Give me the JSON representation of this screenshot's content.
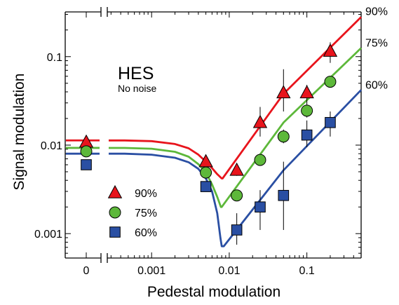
{
  "chart_data": {
    "type": "scatter",
    "title": "HES",
    "subtitle": "No noise",
    "xlabel": "Pedestal modulation",
    "ylabel": "Signal modulation",
    "x_scale": "log",
    "y_scale": "log",
    "xlim": [
      0.00028,
      0.5
    ],
    "ylim": [
      0.00053,
      0.32
    ],
    "x_ticks": [
      {
        "value": 0.001,
        "label": "0.001"
      },
      {
        "value": 0.01,
        "label": "0.01"
      },
      {
        "value": 0.1,
        "label": "0.1"
      }
    ],
    "x_zero_tick": "0",
    "y_ticks": [
      {
        "value": 0.001,
        "label": "0.001"
      },
      {
        "value": 0.01,
        "label": "0.01"
      },
      {
        "value": 0.1,
        "label": "0.1"
      }
    ],
    "right_labels": [
      "90%",
      "75%",
      "60%"
    ],
    "legend": [
      "90%",
      "75%",
      "60%"
    ],
    "legend_position": "lower-left",
    "series": [
      {
        "name": "90%",
        "color": "#e8141c",
        "marker": "triangle",
        "zero_point": {
          "y": 0.0108,
          "err": [
            0.0097,
            0.0124
          ]
        },
        "points": [
          {
            "x": 0.005,
            "y": 0.0065,
            "lo": 0.006,
            "hi": 0.007
          },
          {
            "x": 0.0125,
            "y": 0.0052,
            "lo": 0.0045,
            "hi": 0.006
          },
          {
            "x": 0.025,
            "y": 0.018,
            "lo": 0.0125,
            "hi": 0.027
          },
          {
            "x": 0.05,
            "y": 0.039,
            "lo": 0.024,
            "hi": 0.072
          },
          {
            "x": 0.1,
            "y": 0.039,
            "lo": 0.029,
            "hi": 0.048
          },
          {
            "x": 0.2,
            "y": 0.115,
            "lo": 0.085,
            "hi": 0.145
          }
        ],
        "curve": [
          [
            0.00028,
            0.0113
          ],
          [
            0.00045,
            0.0113
          ],
          [
            0.001,
            0.0111
          ],
          [
            0.002,
            0.0103
          ],
          [
            0.003,
            0.0092
          ],
          [
            0.004,
            0.0078
          ],
          [
            0.005,
            0.0065
          ],
          [
            0.006,
            0.0055
          ],
          [
            0.007,
            0.0047
          ],
          [
            0.008,
            0.0042
          ],
          [
            0.0082,
            0.0042
          ],
          [
            0.05,
            0.038
          ],
          [
            0.5,
            0.28
          ]
        ]
      },
      {
        "name": "75%",
        "color": "#5db83a",
        "marker": "circle",
        "zero_point": {
          "y": 0.0085,
          "err": [
            0.0074,
            0.0098
          ]
        },
        "points": [
          {
            "x": 0.005,
            "y": 0.0049,
            "lo": 0.0045,
            "hi": 0.0053
          },
          {
            "x": 0.0125,
            "y": 0.0027,
            "lo": 0.0024,
            "hi": 0.003
          },
          {
            "x": 0.025,
            "y": 0.0068,
            "lo": 0.006,
            "hi": 0.0077
          },
          {
            "x": 0.05,
            "y": 0.0125,
            "lo": 0.0105,
            "hi": 0.015
          },
          {
            "x": 0.1,
            "y": 0.0245,
            "lo": 0.0205,
            "hi": 0.029
          },
          {
            "x": 0.2,
            "y": 0.052,
            "lo": 0.046,
            "hi": 0.058
          }
        ],
        "curve": [
          [
            0.00028,
            0.0093
          ],
          [
            0.00045,
            0.0093
          ],
          [
            0.001,
            0.0091
          ],
          [
            0.002,
            0.0084
          ],
          [
            0.003,
            0.0074
          ],
          [
            0.004,
            0.0061
          ],
          [
            0.005,
            0.0049
          ],
          [
            0.006,
            0.0036
          ],
          [
            0.007,
            0.0026
          ],
          [
            0.0078,
            0.002
          ],
          [
            0.008,
            0.002
          ],
          [
            0.05,
            0.018
          ],
          [
            0.5,
            0.125
          ]
        ]
      },
      {
        "name": "60%",
        "color": "#2a4fa3",
        "marker": "square",
        "zero_point": {
          "y": 0.006,
          "err": [
            0.0055,
            0.0066
          ]
        },
        "points": [
          {
            "x": 0.005,
            "y": 0.0034,
            "lo": 0.0031,
            "hi": 0.0037
          },
          {
            "x": 0.0125,
            "y": 0.0011,
            "lo": 0.00075,
            "hi": 0.0017
          },
          {
            "x": 0.025,
            "y": 0.002,
            "lo": 0.0011,
            "hi": 0.0031
          },
          {
            "x": 0.05,
            "y": 0.0027,
            "lo": 0.0011,
            "hi": 0.0065
          },
          {
            "x": 0.1,
            "y": 0.013,
            "lo": 0.0095,
            "hi": 0.019
          },
          {
            "x": 0.2,
            "y": 0.018,
            "lo": 0.0125,
            "hi": 0.024
          }
        ],
        "curve": [
          [
            0.00028,
            0.008
          ],
          [
            0.00045,
            0.008
          ],
          [
            0.001,
            0.0078
          ],
          [
            0.002,
            0.0072
          ],
          [
            0.003,
            0.0064
          ],
          [
            0.004,
            0.0054
          ],
          [
            0.005,
            0.0042
          ],
          [
            0.006,
            0.003
          ],
          [
            0.007,
            0.0017
          ],
          [
            0.0077,
            0.0009
          ],
          [
            0.008,
            0.00072
          ],
          [
            0.0085,
            0.00072
          ],
          [
            0.05,
            0.0052
          ],
          [
            0.5,
            0.042
          ]
        ]
      }
    ]
  }
}
